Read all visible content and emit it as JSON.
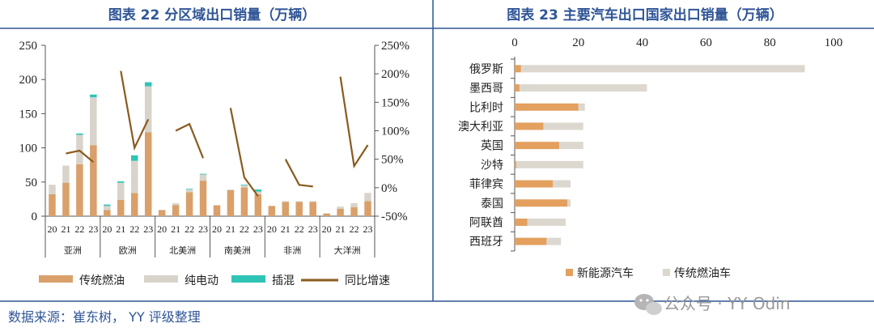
{
  "colors": {
    "title": "#2f5597",
    "divider": "#2f5597",
    "fuel": "#d9a06b",
    "ev": "#d8d4cb",
    "phev": "#2ec4b6",
    "growth": "#8b5a1e",
    "nev": "#e3a05e",
    "trad": "#dcd8cf"
  },
  "source_text": "数据来源：崔东树， YY 评级整理",
  "watermark_text": "公众号 · YY Odin",
  "chart_data": [
    {
      "type": "bar",
      "title": "图表 22 分区域出口销量（万辆）",
      "stacked": true,
      "years": [
        "20",
        "21",
        "22",
        "23"
      ],
      "regions": [
        "亚洲",
        "欧洲",
        "北美洲",
        "南美洲",
        "非洲",
        "大洋洲"
      ],
      "ylim": [
        0,
        250
      ],
      "yticks": [
        0,
        50,
        100,
        150,
        200,
        250
      ],
      "y2lim": [
        -50,
        250
      ],
      "y2ticks": [
        "-50%",
        "0%",
        "50%",
        "100%",
        "150%",
        "200%",
        "250%"
      ],
      "grid": false,
      "legend_position": "bottom",
      "series": [
        {
          "name": "传统燃油",
          "kind": "bar",
          "values": [
            32,
            49,
            76,
            104,
            9,
            24,
            34,
            123,
            9,
            16,
            35,
            52,
            16,
            38,
            42,
            32,
            15,
            21,
            21,
            21,
            4,
            11,
            13,
            22
          ]
        },
        {
          "name": "纯电动",
          "kind": "bar",
          "values": [
            14,
            25,
            43,
            70,
            6,
            25,
            47,
            67,
            0,
            3,
            4,
            9,
            0,
            1,
            3,
            4,
            0,
            1,
            1,
            1,
            0,
            3,
            6,
            12
          ]
        },
        {
          "name": "插混",
          "kind": "bar",
          "values": [
            0,
            0,
            2,
            4,
            2,
            2,
            8,
            6,
            0,
            0,
            1,
            1,
            0,
            0,
            1,
            3,
            0,
            0,
            0,
            0,
            0,
            0,
            0,
            0
          ]
        },
        {
          "name": "同比增速",
          "kind": "line",
          "values": [
            null,
            60,
            65,
            45,
            null,
            205,
            70,
            120,
            null,
            100,
            112,
            52,
            null,
            140,
            18,
            -15,
            null,
            50,
            5,
            2,
            null,
            195,
            38,
            75
          ]
        }
      ]
    },
    {
      "type": "bar",
      "orientation": "horizontal",
      "stacked": true,
      "title": "图表 23 主要汽车出口国家出口销量（万辆）",
      "categories": [
        "俄罗斯",
        "墨西哥",
        "比利时",
        "澳大利亚",
        "英国",
        "沙特",
        "菲律宾",
        "泰国",
        "阿联酋",
        "西班牙"
      ],
      "xlim": [
        0,
        100
      ],
      "xticks": [
        0,
        20,
        40,
        60,
        80,
        100
      ],
      "grid": false,
      "legend_position": "bottom",
      "series": [
        {
          "name": "新能源汽车",
          "values": [
            2,
            1.5,
            20,
            9,
            14,
            0.5,
            12,
            16.5,
            4,
            10
          ]
        },
        {
          "name": "传统燃油车",
          "values": [
            89,
            40,
            2,
            12.5,
            7.5,
            21,
            5.5,
            1,
            12,
            4.5
          ]
        }
      ]
    }
  ]
}
